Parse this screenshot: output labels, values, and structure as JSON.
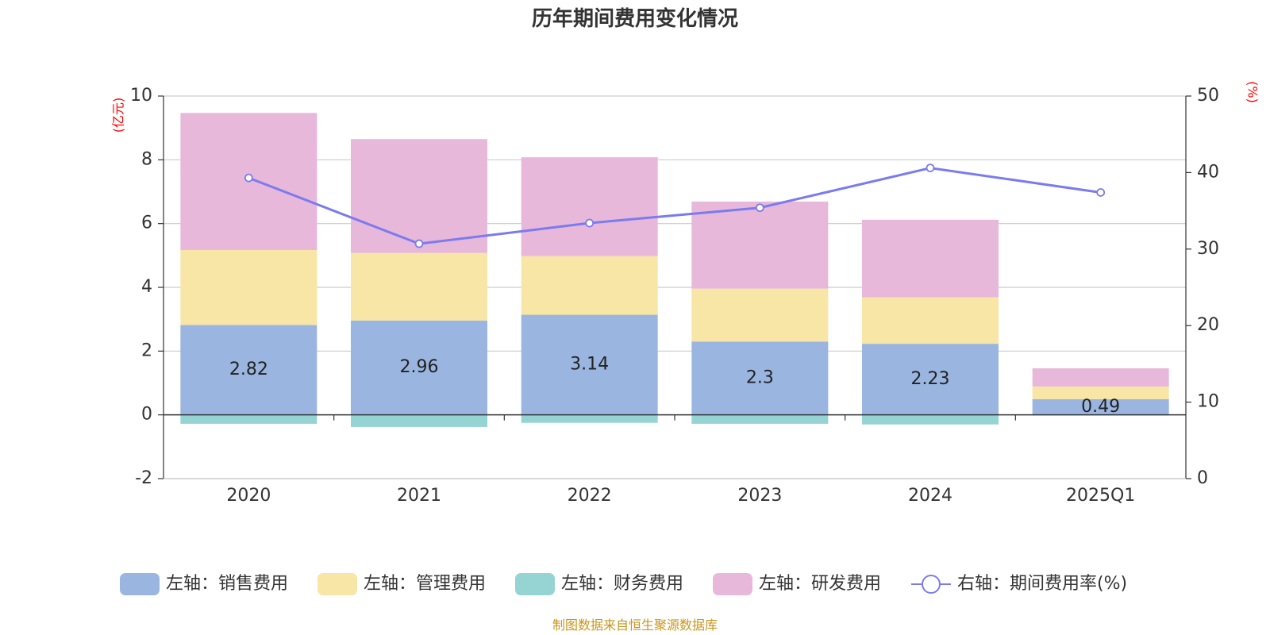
{
  "colors": {
    "sales": "#9ab6e0",
    "admin": "#f8e6a6",
    "finance": "#96d4d4",
    "rnd": "#e7b8d9",
    "rate_line": "#7b7bef",
    "grid": "#cccccc",
    "axis": "#333333",
    "unit": "#ff0000",
    "source": "#c8961e"
  },
  "chart_data": {
    "type": "bar",
    "title": "历年期间费用变化情况",
    "categories": [
      "2020",
      "2021",
      "2022",
      "2023",
      "2024",
      "2025Q1"
    ],
    "left_axis": {
      "unit_label": "(亿元)",
      "ylim": [
        -2,
        10
      ],
      "ticks": [
        -2,
        0,
        2,
        4,
        6,
        8,
        10
      ]
    },
    "right_axis": {
      "unit_label": "(%)",
      "ylim": [
        0,
        50
      ],
      "ticks": [
        0,
        10,
        20,
        30,
        40,
        50
      ]
    },
    "series": [
      {
        "key": "sales",
        "name": "左轴：销售费用",
        "axis": "left",
        "stack": "pos",
        "values": [
          2.82,
          2.96,
          3.14,
          2.3,
          2.23,
          0.49
        ],
        "labels": [
          "2.82",
          "2.96",
          "3.14",
          "2.3",
          "2.23",
          "0.49"
        ]
      },
      {
        "key": "admin",
        "name": "左轴：管理费用",
        "axis": "left",
        "stack": "pos",
        "values": [
          2.35,
          2.12,
          1.84,
          1.66,
          1.46,
          0.4
        ]
      },
      {
        "key": "finance",
        "name": "左轴：财务费用",
        "axis": "left",
        "stack": "neg",
        "values": [
          -0.28,
          -0.38,
          -0.25,
          -0.28,
          -0.3,
          -0.02
        ]
      },
      {
        "key": "rnd",
        "name": "左轴：研发费用",
        "axis": "left",
        "stack": "pos",
        "values": [
          4.3,
          3.57,
          3.1,
          2.73,
          2.43,
          0.57
        ]
      },
      {
        "key": "rate",
        "name": "右轴：期间费用率(%)",
        "axis": "right",
        "type": "line",
        "values": [
          39.3,
          30.7,
          33.4,
          35.4,
          40.6,
          37.4
        ]
      }
    ],
    "legend_position": "bottom",
    "grid": true
  },
  "source_note": "制图数据来自恒生聚源数据库"
}
